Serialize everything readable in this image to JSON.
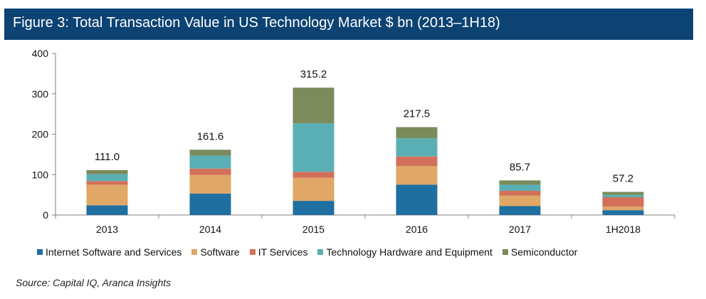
{
  "header": {
    "title": "Figure 3: Total Transaction Value in US Technology Market $ bn (2013–1H18)"
  },
  "source": "Source: Capital IQ, Aranca Insights",
  "chart_data": {
    "type": "bar",
    "stacked": true,
    "categories": [
      "2013",
      "2014",
      "2015",
      "2016",
      "2017",
      "1H2018"
    ],
    "ylim": [
      0,
      400
    ],
    "yticks": [
      "0",
      "100",
      "200",
      "300",
      "400"
    ],
    "series": [
      {
        "name": "Internet Software and Services",
        "color": "#1f6fa0",
        "values": [
          24,
          53,
          35,
          75,
          22,
          12
        ]
      },
      {
        "name": "Software",
        "color": "#e0a767",
        "values": [
          51,
          46,
          57,
          46,
          26,
          9
        ]
      },
      {
        "name": "IT Services",
        "color": "#d2705a",
        "values": [
          9,
          16,
          15,
          24,
          12,
          23
        ]
      },
      {
        "name": "Technology Hardware and Equipment",
        "color": "#5aafb4",
        "values": [
          17,
          32,
          120,
          45,
          15,
          6
        ]
      },
      {
        "name": "Semiconductor",
        "color": "#7b8b5c",
        "values": [
          10,
          14.6,
          88.2,
          27.5,
          10.7,
          7.2
        ]
      }
    ],
    "totals": [
      "111.0",
      "161.6",
      "315.2",
      "217.5",
      "85.7",
      "57.2"
    ],
    "grid": false,
    "legend_position": "bottom"
  }
}
